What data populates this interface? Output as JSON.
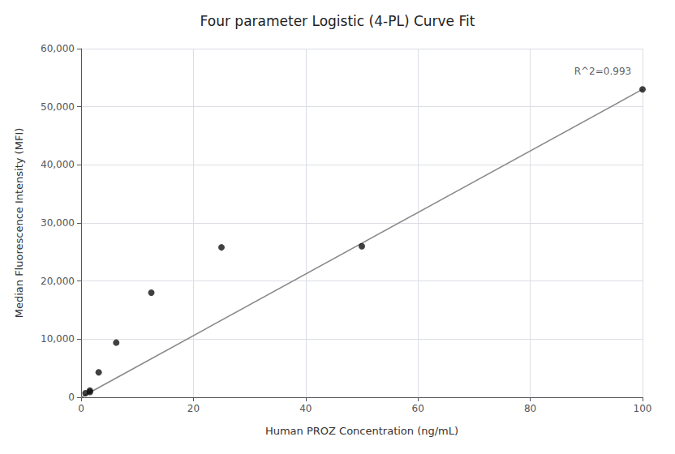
{
  "chart_data": {
    "type": "scatter",
    "title": "Four parameter Logistic (4-PL) Curve Fit",
    "xlabel": "Human PROZ Concentration (ng/mL)",
    "ylabel": "Median Fluorescence Intensity (MFI)",
    "series": [
      {
        "type": "line",
        "color": "#888888",
        "x": [
          0,
          100
        ],
        "values": [
          0,
          53000
        ]
      },
      {
        "type": "scatter",
        "color": "#111111",
        "x": [
          0.781,
          1.563,
          1.563,
          3.125,
          6.25,
          12.5,
          25,
          50,
          100
        ],
        "values": [
          700,
          900,
          1150,
          4300,
          9400,
          18000,
          25800,
          26000,
          53000
        ]
      }
    ],
    "annotations": [
      {
        "text": "R^2=0.993",
        "x": 98,
        "y": 55000
      }
    ],
    "xlim": [
      0,
      100
    ],
    "ylim": [
      0,
      60000
    ],
    "xticks": [
      0,
      20,
      40,
      60,
      80,
      100
    ],
    "yticks": [
      0,
      {
        "value": 10000,
        "label": "10,000"
      },
      {
        "value": 20000,
        "label": "20,000"
      },
      {
        "value": 30000,
        "label": "30,000"
      },
      {
        "value": 40000,
        "label": "40,000"
      },
      {
        "value": 50000,
        "label": "50,000"
      },
      {
        "value": 60000,
        "label": "60,000"
      }
    ],
    "grid": true
  }
}
